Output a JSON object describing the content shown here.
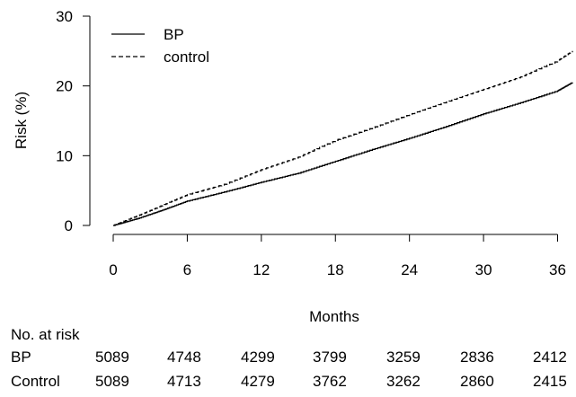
{
  "chart_data": {
    "type": "line",
    "xlabel": "Months",
    "ylabel": "Risk (%)",
    "xlim": [
      0,
      37.2
    ],
    "ylim": [
      0,
      30
    ],
    "x_ticks": [
      0,
      6,
      12,
      18,
      24,
      30,
      36
    ],
    "y_ticks": [
      0,
      10,
      20,
      30
    ],
    "legend_position": "top-left",
    "series": [
      {
        "name": "BP",
        "style": "solid",
        "x": [
          0,
          2,
          4,
          6,
          9,
          12,
          15,
          18,
          21,
          24,
          27,
          30,
          33,
          36,
          37.2
        ],
        "y": [
          0,
          1.0,
          2.2,
          3.5,
          4.8,
          6.2,
          7.5,
          9.2,
          10.9,
          12.5,
          14.2,
          16.0,
          17.6,
          19.3,
          20.5
        ]
      },
      {
        "name": "control",
        "style": "dashed",
        "x": [
          0,
          2,
          4,
          6,
          9,
          12,
          15,
          18,
          21,
          24,
          27,
          30,
          33,
          36,
          37.2
        ],
        "y": [
          0,
          1.4,
          2.9,
          4.4,
          5.9,
          8.0,
          9.8,
          12.2,
          14.0,
          15.9,
          17.7,
          19.5,
          21.3,
          23.6,
          25.0
        ]
      }
    ]
  },
  "risk_table": {
    "title": "No. at risk",
    "rows": [
      {
        "label": "BP",
        "values": [
          "5089",
          "4748",
          "4299",
          "3799",
          "3259",
          "2836",
          "2412"
        ]
      },
      {
        "label": "Control",
        "values": [
          "5089",
          "4713",
          "4279",
          "3762",
          "3262",
          "2860",
          "2415"
        ]
      }
    ]
  }
}
